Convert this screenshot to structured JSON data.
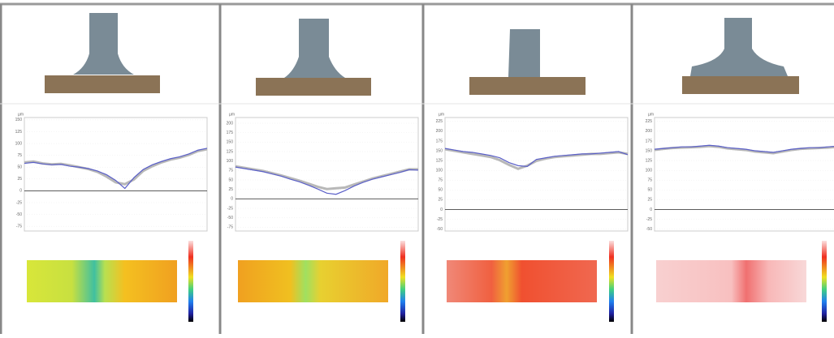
{
  "chart_data": [
    {
      "type": "line",
      "y_label": "µm",
      "xlim": [
        0,
        20
      ],
      "ylim": [
        -85,
        155
      ],
      "yticks": [
        -75,
        -50,
        -25,
        0,
        25,
        50,
        75,
        100,
        125,
        150
      ],
      "grid": true,
      "x": [
        0,
        1,
        2,
        3,
        4,
        5,
        6,
        7,
        8,
        9,
        10,
        11,
        12,
        13,
        14,
        15,
        16,
        17,
        18,
        19,
        20
      ],
      "series": [
        {
          "color": "#b8b8b8",
          "values": [
            60,
            62,
            58,
            56,
            57,
            54,
            50,
            46,
            40,
            30,
            18,
            14,
            24,
            42,
            52,
            60,
            66,
            70,
            76,
            84,
            88
          ]
        },
        {
          "color": "#5a5fc8",
          "values": [
            58,
            60,
            57,
            55,
            56,
            52,
            50,
            47,
            42,
            34,
            22,
            5,
            28,
            45,
            55,
            62,
            68,
            72,
            78,
            86,
            90
          ]
        }
      ]
    },
    {
      "type": "line",
      "y_label": "µm",
      "xlim": [
        0,
        20
      ],
      "ylim": [
        -85,
        215
      ],
      "yticks": [
        -75,
        -50,
        -25,
        0,
        25,
        50,
        75,
        100,
        125,
        150,
        175,
        200
      ],
      "grid": true,
      "x": [
        0,
        1,
        2,
        3,
        4,
        5,
        6,
        7,
        8,
        9,
        10,
        11,
        12,
        13,
        14,
        15,
        16,
        17,
        18,
        19,
        20
      ],
      "series": [
        {
          "color": "#b8b8b8",
          "values": [
            86,
            82,
            78,
            74,
            68,
            62,
            55,
            48,
            40,
            32,
            26,
            28,
            30,
            38,
            46,
            54,
            60,
            66,
            72,
            78,
            78
          ]
        },
        {
          "color": "#5a5fc8",
          "values": [
            84,
            80,
            76,
            72,
            66,
            60,
            52,
            45,
            36,
            26,
            15,
            12,
            22,
            34,
            44,
            52,
            58,
            64,
            70,
            77,
            76
          ]
        }
      ]
    },
    {
      "type": "line",
      "y_label": "µm",
      "xlim": [
        0,
        20
      ],
      "ylim": [
        -55,
        235
      ],
      "yticks": [
        -50,
        -25,
        0,
        25,
        50,
        75,
        100,
        125,
        150,
        175,
        200,
        225
      ],
      "grid": true,
      "x": [
        0,
        1,
        2,
        3,
        4,
        5,
        6,
        7,
        8,
        9,
        10,
        11,
        12,
        13,
        14,
        15,
        16,
        17,
        18,
        19,
        20
      ],
      "series": [
        {
          "color": "#b8b8b8",
          "values": [
            154,
            150,
            146,
            142,
            138,
            134,
            126,
            114,
            104,
            112,
            124,
            130,
            134,
            136,
            138,
            140,
            142,
            142,
            144,
            146,
            142
          ]
        },
        {
          "color": "#5a5fc8",
          "values": [
            156,
            152,
            148,
            146,
            142,
            138,
            132,
            120,
            112,
            110,
            128,
            132,
            136,
            138,
            140,
            142,
            142,
            144,
            146,
            148,
            140
          ]
        }
      ]
    },
    {
      "type": "line",
      "y_label": "µm",
      "xlim": [
        0,
        20
      ],
      "ylim": [
        -55,
        235
      ],
      "yticks": [
        -50,
        -25,
        0,
        25,
        50,
        75,
        100,
        125,
        150,
        175,
        200,
        225
      ],
      "grid": true,
      "x": [
        0,
        1,
        2,
        3,
        4,
        5,
        6,
        7,
        8,
        9,
        10,
        11,
        12,
        13,
        14,
        15,
        16,
        17,
        18,
        19,
        20
      ],
      "series": [
        {
          "color": "#b8b8b8",
          "values": [
            152,
            155,
            157,
            158,
            159,
            160,
            162,
            160,
            156,
            154,
            152,
            148,
            146,
            144,
            148,
            152,
            155,
            156,
            157,
            158,
            160
          ]
        },
        {
          "color": "#5a5fc8",
          "values": [
            154,
            156,
            158,
            160,
            160,
            162,
            164,
            162,
            158,
            156,
            154,
            150,
            148,
            146,
            150,
            154,
            156,
            158,
            158,
            160,
            162
          ]
        }
      ]
    }
  ]
}
